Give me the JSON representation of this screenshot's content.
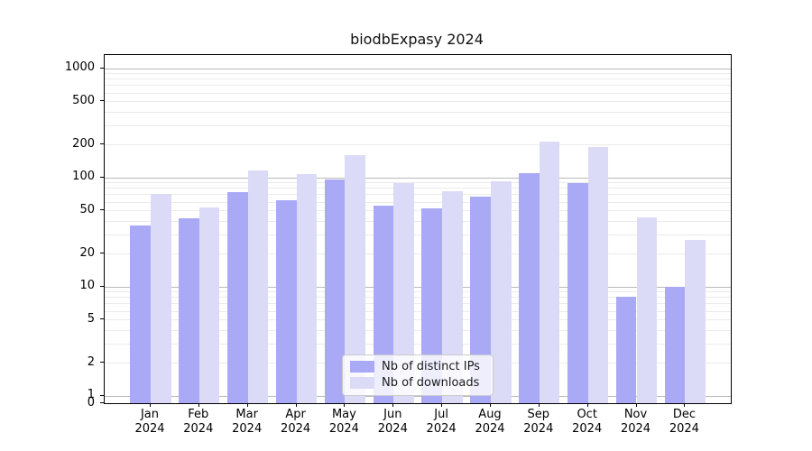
{
  "title": "biodbExpasy 2024",
  "chart_data": {
    "type": "bar",
    "title": "biodbExpasy 2024",
    "categories": [
      "Jan 2024",
      "Feb 2024",
      "Mar 2024",
      "Apr 2024",
      "May 2024",
      "Jun 2024",
      "Jul 2024",
      "Aug 2024",
      "Sep 2024",
      "Oct 2024",
      "Nov 2024",
      "Dec 2024"
    ],
    "series": [
      {
        "name": "Nb of distinct IPs",
        "color": "#a9a9f6",
        "values": [
          36,
          42,
          73,
          62,
          95,
          55,
          52,
          67,
          110,
          88,
          8,
          10
        ]
      },
      {
        "name": "Nb of downloads",
        "color": "#dbdbf8",
        "values": [
          70,
          53,
          115,
          107,
          160,
          88,
          75,
          93,
          215,
          190,
          43,
          27
        ]
      }
    ],
    "xlabel": "",
    "ylabel": "",
    "yscale": "symlog",
    "y_ticks": [
      1000,
      500,
      200,
      100,
      50,
      20,
      10,
      5,
      2,
      1,
      0
    ],
    "ylim": [
      0,
      1380
    ],
    "grid": true,
    "grid_major_color": "#b9b9b9",
    "grid_minor_color": "#ebebeb",
    "legend_position": "lower center",
    "legend_entries": [
      "Nb of distinct IPs",
      "Nb of downloads"
    ]
  }
}
